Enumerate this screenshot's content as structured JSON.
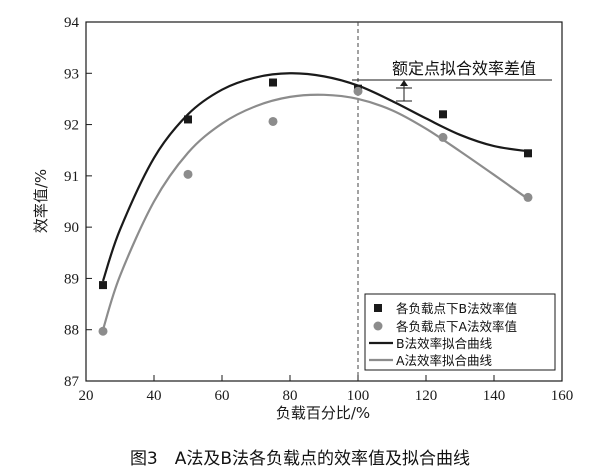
{
  "chart_data": {
    "type": "scatter",
    "xlabel": "负载百分比/%",
    "ylabel": "效率值/%",
    "xlim": [
      20,
      160
    ],
    "ylim": [
      87,
      94
    ],
    "xticks": [
      "20",
      "40",
      "60",
      "80",
      "100",
      "120",
      "140",
      "160"
    ],
    "yticks": [
      "87",
      "88",
      "89",
      "90",
      "91",
      "92",
      "93",
      "94"
    ],
    "grid": false,
    "legend_position": "bottom-right",
    "reference_line_x": 100,
    "annotation": "额定点拟合效率差值",
    "series": [
      {
        "name": "各负载点下B法效率值",
        "kind": "scatter",
        "marker": "square",
        "color": "#1a1a1a",
        "x": [
          25,
          50,
          75,
          100,
          125,
          150
        ],
        "y": [
          88.87,
          92.1,
          92.82,
          92.7,
          92.2,
          91.44
        ]
      },
      {
        "name": "各负载点下A法效率值",
        "kind": "scatter",
        "marker": "circle",
        "color": "#8c8c8c",
        "x": [
          25,
          50,
          75,
          100,
          125,
          150
        ],
        "y": [
          87.97,
          91.03,
          92.06,
          92.65,
          91.75,
          90.58
        ]
      },
      {
        "name": "B法效率拟合曲线",
        "kind": "line",
        "color": "#1a1a1a",
        "x": [
          25,
          30,
          40,
          50,
          60,
          70,
          80,
          90,
          100,
          110,
          120,
          130,
          140,
          150
        ],
        "y": [
          88.95,
          89.95,
          91.35,
          92.2,
          92.68,
          92.92,
          93.0,
          92.94,
          92.76,
          92.46,
          92.12,
          91.8,
          91.58,
          91.48
        ]
      },
      {
        "name": "A法效率拟合曲线",
        "kind": "line",
        "color": "#8c8c8c",
        "x": [
          25,
          30,
          40,
          50,
          60,
          70,
          80,
          90,
          100,
          110,
          120,
          130,
          140,
          150
        ],
        "y": [
          88.0,
          89.05,
          90.5,
          91.45,
          92.02,
          92.36,
          92.54,
          92.58,
          92.5,
          92.28,
          91.92,
          91.48,
          91.02,
          90.55
        ]
      }
    ]
  },
  "caption": "图3　A法及B法各负载点的效率值及拟合曲线"
}
